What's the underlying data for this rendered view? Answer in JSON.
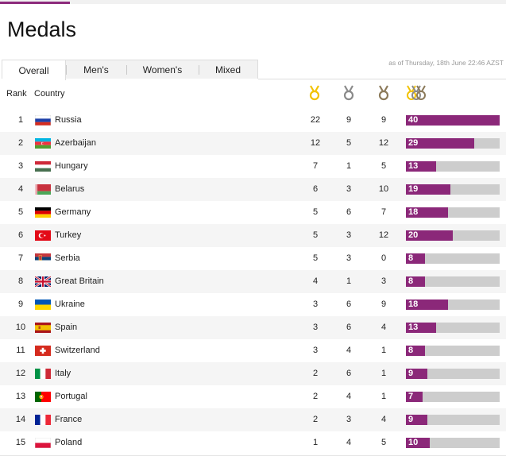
{
  "page": {
    "title": "Medals"
  },
  "tabs": [
    {
      "label": "Overall",
      "active": true
    },
    {
      "label": "Men's",
      "active": false
    },
    {
      "label": "Women's",
      "active": false
    },
    {
      "label": "Mixed",
      "active": false
    }
  ],
  "as_of": "as of Thursday, 18th June 22:46 AZST",
  "table": {
    "headers": {
      "rank": "Rank",
      "country": "Country"
    },
    "medal_icons": [
      "gold-medal-icon",
      "silver-medal-icon",
      "bronze-medal-icon",
      "total-medals-icon"
    ],
    "max_total": 40,
    "rows": [
      {
        "rank": "1",
        "country": "Russia",
        "flag": "russia-flag",
        "gold": "22",
        "silver": "9",
        "bronze": "9",
        "total": 40
      },
      {
        "rank": "2",
        "country": "Azerbaijan",
        "flag": "azerbaijan-flag",
        "gold": "12",
        "silver": "5",
        "bronze": "12",
        "total": 29
      },
      {
        "rank": "3",
        "country": "Hungary",
        "flag": "hungary-flag",
        "gold": "7",
        "silver": "1",
        "bronze": "5",
        "total": 13
      },
      {
        "rank": "4",
        "country": "Belarus",
        "flag": "belarus-flag",
        "gold": "6",
        "silver": "3",
        "bronze": "10",
        "total": 19
      },
      {
        "rank": "5",
        "country": "Germany",
        "flag": "germany-flag",
        "gold": "5",
        "silver": "6",
        "bronze": "7",
        "total": 18
      },
      {
        "rank": "6",
        "country": "Turkey",
        "flag": "turkey-flag",
        "gold": "5",
        "silver": "3",
        "bronze": "12",
        "total": 20
      },
      {
        "rank": "7",
        "country": "Serbia",
        "flag": "serbia-flag",
        "gold": "5",
        "silver": "3",
        "bronze": "0",
        "total": 8
      },
      {
        "rank": "8",
        "country": "Great Britain",
        "flag": "great-britain-flag",
        "gold": "4",
        "silver": "1",
        "bronze": "3",
        "total": 8
      },
      {
        "rank": "9",
        "country": "Ukraine",
        "flag": "ukraine-flag",
        "gold": "3",
        "silver": "6",
        "bronze": "9",
        "total": 18
      },
      {
        "rank": "10",
        "country": "Spain",
        "flag": "spain-flag",
        "gold": "3",
        "silver": "6",
        "bronze": "4",
        "total": 13
      },
      {
        "rank": "11",
        "country": "Switzerland",
        "flag": "switzerland-flag",
        "gold": "3",
        "silver": "4",
        "bronze": "1",
        "total": 8
      },
      {
        "rank": "12",
        "country": "Italy",
        "flag": "italy-flag",
        "gold": "2",
        "silver": "6",
        "bronze": "1",
        "total": 9
      },
      {
        "rank": "13",
        "country": "Portugal",
        "flag": "portugal-flag",
        "gold": "2",
        "silver": "4",
        "bronze": "1",
        "total": 7
      },
      {
        "rank": "14",
        "country": "France",
        "flag": "france-flag",
        "gold": "2",
        "silver": "3",
        "bronze": "4",
        "total": 9
      },
      {
        "rank": "15",
        "country": "Poland",
        "flag": "poland-flag",
        "gold": "1",
        "silver": "4",
        "bronze": "5",
        "total": 10
      }
    ]
  },
  "colors": {
    "accent": "#8b2879",
    "bar_bg": "#cdcdcd",
    "gold": "#f2c200",
    "silver": "#8a8a8a",
    "bronze": "#8c7a5a"
  }
}
